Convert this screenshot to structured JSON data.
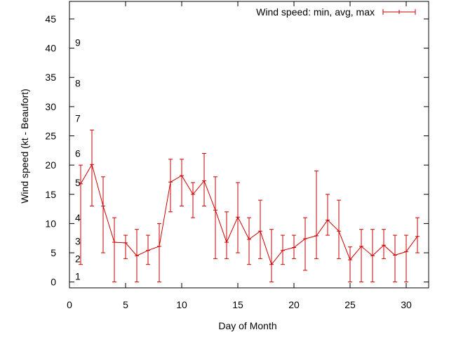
{
  "chart_data": {
    "type": "line",
    "title": "",
    "xlabel": "Day of Month",
    "ylabel": "Wind speed (kt - Beaufort)",
    "xlim": [
      0,
      32
    ],
    "ylim": [
      -1,
      48
    ],
    "x_ticks": [
      0,
      5,
      10,
      15,
      20,
      25,
      30
    ],
    "y_ticks": [
      0,
      5,
      10,
      15,
      20,
      25,
      30,
      35,
      40,
      45
    ],
    "grid": false,
    "legend_position": "top-right",
    "series": [
      {
        "name": "Wind speed: min, avg, max",
        "color": "#cc0000",
        "style": "line with min/max error bars",
        "x": [
          1,
          2,
          3,
          4,
          5,
          6,
          7,
          8,
          9,
          10,
          11,
          12,
          13,
          14,
          15,
          16,
          17,
          18,
          19,
          20,
          21,
          22,
          23,
          24,
          25,
          26,
          27,
          28,
          29,
          30,
          31
        ],
        "avg": [
          16.8,
          20.1,
          13,
          6.8,
          6.7,
          4.5,
          5.4,
          6.1,
          17.1,
          18.2,
          15,
          17.3,
          12.3,
          6.8,
          11.1,
          7.3,
          8.7,
          3,
          5.4,
          5.9,
          7.4,
          7.9,
          10.6,
          8.7,
          3.8,
          6.1,
          4.5,
          6.3,
          4.6,
          5.2,
          7.8
        ],
        "min": [
          3,
          13,
          5,
          0,
          4,
          0,
          3,
          0,
          12,
          13,
          11,
          13,
          4,
          4,
          5,
          3,
          4,
          0,
          3,
          4,
          2,
          4,
          8,
          4,
          0,
          0,
          0,
          4,
          0,
          0,
          5
        ],
        "max": [
          20,
          26,
          18,
          11,
          8,
          9,
          8,
          10,
          21,
          21,
          17,
          22,
          18,
          12,
          17,
          11,
          14,
          9,
          8,
          8,
          11,
          19,
          15,
          14,
          6,
          9,
          9,
          9,
          8,
          8,
          11
        ]
      }
    ],
    "annotations": {
      "beaufort_scale": [
        {
          "label": "1",
          "value": 1
        },
        {
          "label": "2",
          "value": 4
        },
        {
          "label": "3",
          "value": 7
        },
        {
          "label": "4",
          "value": 11
        },
        {
          "label": "5",
          "value": 17
        },
        {
          "label": "6",
          "value": 22
        },
        {
          "label": "7",
          "value": 28
        },
        {
          "label": "8",
          "value": 34
        },
        {
          "label": "9",
          "value": 41
        }
      ]
    }
  }
}
